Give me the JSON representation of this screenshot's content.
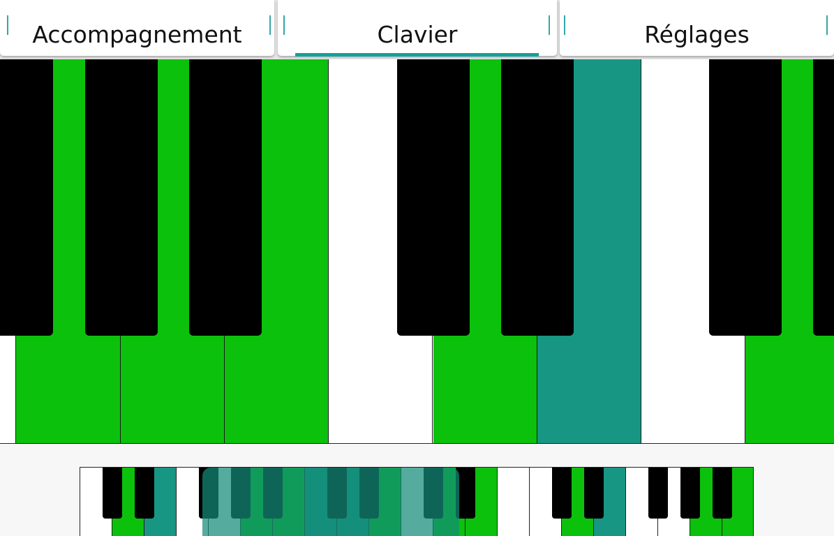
{
  "tabs": [
    {
      "id": "accompagnement",
      "label": "Accompagnement",
      "selected": false
    },
    {
      "id": "clavier",
      "label": "Clavier",
      "selected": true
    },
    {
      "id": "reglages",
      "label": "Réglages",
      "selected": false
    }
  ],
  "colors": {
    "white_key": "#ffffff",
    "black_key": "#000000",
    "highlight_green": "#0cc10c",
    "pressed_teal": "#179683",
    "tab_accent": "#12a19a"
  },
  "main_keyboard": {
    "white_keys": [
      "white",
      "green",
      "green",
      "green",
      "white",
      "green",
      "teal",
      "white",
      "green"
    ],
    "black_keys": 7
  },
  "overview": {
    "white_keys": [
      "white",
      "green",
      "teal",
      "white",
      "white",
      "green",
      "green",
      "teal",
      "teal",
      "green",
      "white",
      "green",
      "green",
      "white",
      "white",
      "green",
      "teal",
      "white",
      "white",
      "green",
      "green"
    ],
    "black_keys": 14,
    "visible_range": "Clavier view window"
  }
}
